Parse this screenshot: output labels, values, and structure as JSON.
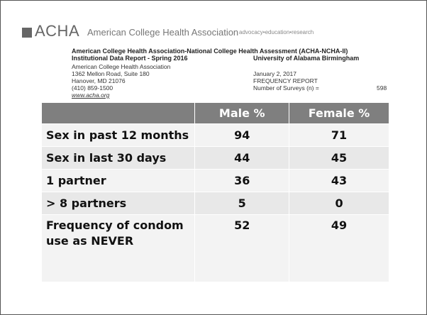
{
  "header": {
    "logo": "ACHA",
    "organization": "American College Health Association",
    "tagline": "advocacy•education•research",
    "survey": "American College Health Association-National College Health Assessment (ACHA-NCHA-II)",
    "report": "Institutional Data Report  - Spring 2016",
    "institution": "University of Alabama Birmingham",
    "address": [
      "American College Health Association",
      "1362 Mellon Road, Suite 180",
      "Hanover, MD 21076",
      "(410) 859-1500"
    ],
    "website": "www.acha.org",
    "date": "January 2, 2017",
    "report_type": "FREQUENCY REPORT",
    "surveys_label": "Number of Surveys (n)  =",
    "surveys": 598
  },
  "table": {
    "columns": [
      "",
      "Male  %",
      "Female  %"
    ],
    "rows": [
      [
        "Sex in past 12 months",
        94,
        71
      ],
      [
        "Sex in last 30 days",
        44,
        45
      ],
      [
        "1 partner",
        36,
        43
      ],
      [
        "> 8 partners",
        5,
        0
      ],
      [
        "Frequency of condom use as NEVER",
        52,
        49
      ]
    ]
  }
}
